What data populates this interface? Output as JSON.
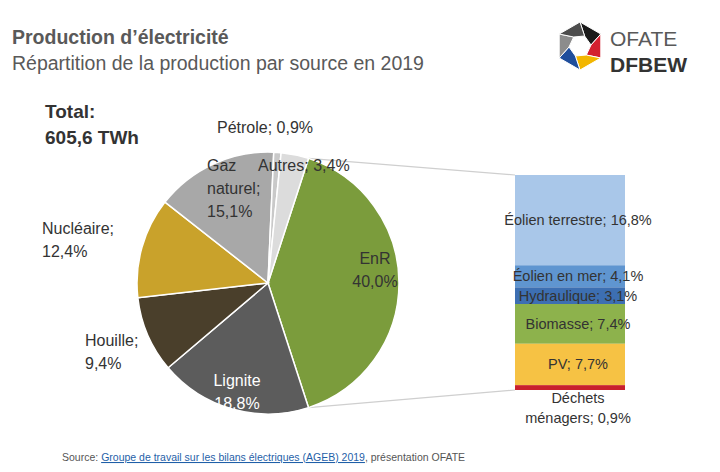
{
  "header": {
    "title": "Production d’électricité",
    "subtitle": "Répartition de la production par source en 2019",
    "logo": [
      "OFATE",
      "DFBEW"
    ]
  },
  "chart_data": [
    {
      "type": "pie",
      "annotations": [
        "Total:",
        "605,6 TWh"
      ],
      "categories": [
        "EnR",
        "Lignite",
        "Houille;",
        "Nucléaire;",
        "Gaz\nnaturel;",
        "Pétrole;",
        "Autres;"
      ],
      "values": [
        40.0,
        18.8,
        9.4,
        12.4,
        15.1,
        0.9,
        3.4
      ],
      "value_labels": [
        "40,0%",
        "18,8%",
        "9,4%",
        "12,4%",
        "15,1%",
        "0,9%",
        "3,4%"
      ],
      "colors": [
        "#7b9c3c",
        "#5c5c5c",
        "#4a3f2b",
        "#c9a22b",
        "#a8a8a8",
        "#c9c9c9",
        "#dcdcdc"
      ],
      "data_labels": true
    },
    {
      "type": "bar",
      "stacked": true,
      "categories": [
        "Éolien terrestre;",
        "Éolien en mer;",
        "Hydraulique;",
        "Biomasse;",
        "PV;",
        "Déchets\nménagers;"
      ],
      "values": [
        16.8,
        4.1,
        3.1,
        7.4,
        7.7,
        0.9
      ],
      "value_labels": [
        "16,8%",
        "4,1%",
        "3,1%",
        "7,4%",
        "7,7%",
        "0,9%"
      ],
      "colors": [
        "#a9c7e9",
        "#5f95d0",
        "#3d6fb2",
        "#8db24c",
        "#f6c244",
        "#c8202c"
      ],
      "data_labels": true,
      "tick_labels": false
    }
  ],
  "source": {
    "prefix": "Source:",
    "link": "Groupe de travail sur les bilans électriques (AGEB) 2019",
    "suffix": ", présentation OFATE"
  }
}
